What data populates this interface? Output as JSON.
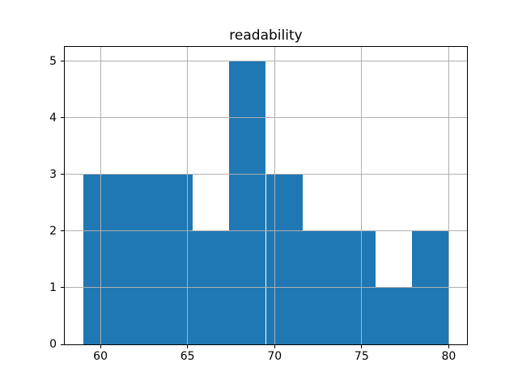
{
  "figure": {
    "background": "#ffffff"
  },
  "chart_data": {
    "type": "bar",
    "variant": "histogram",
    "title": "readability",
    "xlabel": "",
    "ylabel": "",
    "bin_edges": [
      59.0,
      61.1,
      63.2,
      65.3,
      67.4,
      69.5,
      71.6,
      73.7,
      75.8,
      77.9,
      80.0
    ],
    "counts": [
      3,
      3,
      3,
      2,
      5,
      3,
      2,
      2,
      1,
      2
    ],
    "x_ticks": [
      60,
      65,
      70,
      75,
      80
    ],
    "y_ticks": [
      0,
      1,
      2,
      3,
      4,
      5
    ],
    "xlim": [
      57.95,
      81.05
    ],
    "ylim": [
      0,
      5.25
    ],
    "grid": true,
    "grid_above_bars": true,
    "colors": {
      "bar": "#1f77b4",
      "grid": "#b0b0b0",
      "spine": "#000000",
      "text": "#000000"
    }
  }
}
